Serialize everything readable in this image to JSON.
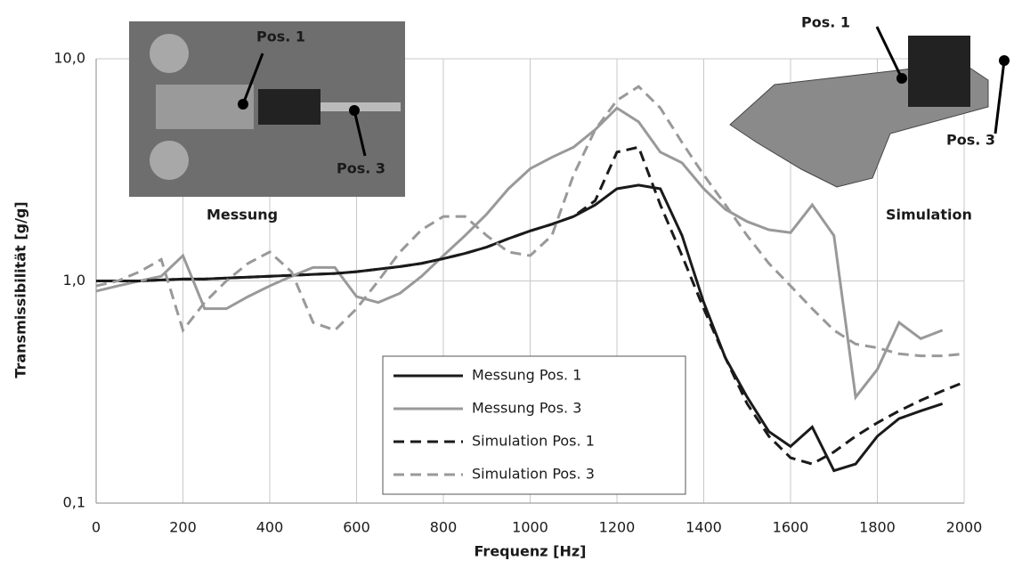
{
  "chart_data": {
    "type": "line",
    "xlabel": "Frequenz [Hz]",
    "ylabel": "Transmissibilität [g/g]",
    "annotations": [
      "Pos. 1",
      "Pos. 3",
      "Messung",
      "Pos. 1",
      "Pos. 3",
      "Simulation"
    ],
    "x": [
      0,
      50,
      100,
      150,
      200,
      250,
      300,
      350,
      400,
      450,
      500,
      550,
      600,
      650,
      700,
      750,
      800,
      850,
      900,
      950,
      1000,
      1050,
      1100,
      1150,
      1200,
      1250,
      1300,
      1350,
      1400,
      1450,
      1500,
      1550,
      1600,
      1650,
      1700,
      1750,
      1800,
      1850,
      1900,
      1950,
      2000
    ],
    "series": [
      {
        "name": "Messung Pos. 1",
        "color": "#1a1a1a",
        "dash": false,
        "values": [
          1.0,
          1.0,
          1.0,
          1.01,
          1.02,
          1.02,
          1.03,
          1.04,
          1.05,
          1.06,
          1.07,
          1.08,
          1.1,
          1.13,
          1.16,
          1.2,
          1.26,
          1.33,
          1.42,
          1.55,
          1.68,
          1.8,
          1.95,
          2.2,
          2.6,
          2.7,
          2.6,
          1.6,
          0.8,
          0.45,
          0.3,
          0.21,
          0.18,
          0.22,
          0.14,
          0.15,
          0.2,
          0.24,
          0.26,
          0.28,
          null
        ]
      },
      {
        "name": "Messung Pos. 3",
        "color": "#999999",
        "dash": false,
        "values": [
          0.9,
          0.95,
          1.0,
          1.05,
          1.3,
          0.75,
          0.75,
          0.85,
          0.95,
          1.05,
          1.15,
          1.15,
          0.85,
          0.8,
          0.88,
          1.05,
          1.3,
          1.6,
          2.0,
          2.6,
          3.2,
          3.6,
          4.0,
          4.8,
          6.0,
          5.2,
          3.8,
          3.4,
          2.6,
          2.1,
          1.85,
          1.7,
          1.65,
          2.2,
          1.6,
          0.3,
          0.4,
          0.65,
          0.55,
          0.6,
          null
        ]
      },
      {
        "name": "Simulation Pos. 1",
        "color": "#1a1a1a",
        "dash": true,
        "values": [
          1.0,
          1.0,
          1.0,
          1.01,
          1.02,
          1.02,
          1.03,
          1.04,
          1.05,
          1.06,
          1.07,
          1.08,
          1.1,
          1.13,
          1.16,
          1.2,
          1.26,
          1.33,
          1.42,
          1.55,
          1.68,
          1.8,
          1.95,
          2.3,
          3.8,
          4.0,
          2.2,
          1.3,
          0.75,
          0.45,
          0.28,
          0.2,
          0.16,
          0.15,
          0.17,
          0.2,
          0.23,
          0.26,
          0.29,
          0.32,
          0.35
        ]
      },
      {
        "name": "Simulation Pos. 3",
        "color": "#999999",
        "dash": true,
        "values": [
          0.95,
          1.0,
          1.1,
          1.25,
          0.6,
          0.8,
          1.0,
          1.2,
          1.35,
          1.1,
          0.65,
          0.6,
          0.75,
          1.0,
          1.35,
          1.7,
          1.95,
          1.95,
          1.6,
          1.35,
          1.3,
          1.6,
          3.0,
          4.8,
          6.5,
          7.5,
          6.0,
          4.2,
          3.0,
          2.2,
          1.6,
          1.2,
          0.95,
          0.75,
          0.6,
          0.52,
          0.5,
          0.47,
          0.46,
          0.46,
          0.47
        ]
      }
    ],
    "xlim": [
      0,
      2000
    ],
    "xticks": [
      0,
      200,
      400,
      600,
      800,
      1000,
      1200,
      1400,
      1600,
      1800,
      2000
    ],
    "ylim": [
      0.1,
      10
    ],
    "yticks": [
      {
        "value": 0.1,
        "label": "0,1"
      },
      {
        "value": 1,
        "label": "1,0"
      },
      {
        "value": 10,
        "label": "10,0"
      }
    ],
    "yscale": "log",
    "grid": true,
    "legend": "lower center"
  }
}
